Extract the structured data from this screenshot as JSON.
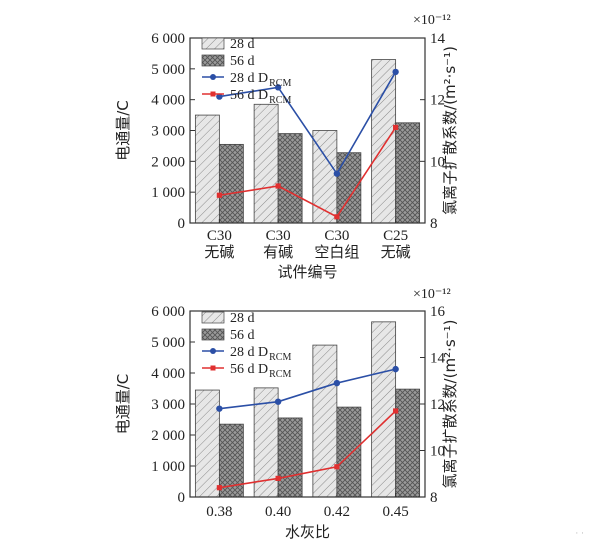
{
  "colors": {
    "line28": "#2b4fa6",
    "line56": "#e03030",
    "axis": "#333333"
  },
  "watermark": "· ·",
  "chart_data": [
    {
      "type": "bar",
      "categories": [
        "C30\n无碱",
        "C30\n有碱",
        "C30\n空白组",
        "C25\n无碱"
      ],
      "xlabel": "试件编号",
      "ylabel": "电通量/C",
      "y2label": "氯离子扩散系数/(m²·s⁻¹)",
      "y2_multiplier": "×10⁻¹²",
      "ylim": [
        0,
        6000
      ],
      "y2lim": [
        8,
        14
      ],
      "yticks": [
        "0",
        "1 000",
        "2 000",
        "3 000",
        "4 000",
        "5 000",
        "6 000"
      ],
      "y2ticks": [
        "8",
        "10",
        "12",
        "14"
      ],
      "series": [
        {
          "name": "28 d",
          "kind": "bar",
          "values": [
            3500,
            3850,
            3000,
            5300
          ]
        },
        {
          "name": "56 d",
          "kind": "bar",
          "values": [
            2550,
            2900,
            2280,
            3250
          ]
        },
        {
          "name": "28 d D",
          "sub": "RCM",
          "kind": "line",
          "axis": "right",
          "values": [
            12.1,
            12.4,
            9.6,
            12.9
          ]
        },
        {
          "name": "56 d D",
          "sub": "RCM",
          "kind": "line",
          "axis": "right",
          "values": [
            8.9,
            9.2,
            8.2,
            11.1
          ]
        }
      ]
    },
    {
      "type": "bar",
      "categories": [
        "0.38",
        "0.40",
        "0.42",
        "0.45"
      ],
      "xlabel": "水灰比",
      "ylabel": "电通量/C",
      "y2label": "氯离子扩散系数/(m²·s⁻¹)",
      "y2_multiplier": "×10⁻¹²",
      "ylim": [
        0,
        6000
      ],
      "y2lim": [
        8,
        16
      ],
      "yticks": [
        "0",
        "1 000",
        "2 000",
        "3 000",
        "4 000",
        "5 000",
        "6 000"
      ],
      "y2ticks": [
        "8",
        "10",
        "12",
        "14",
        "16"
      ],
      "series": [
        {
          "name": "28 d",
          "kind": "bar",
          "values": [
            3450,
            3520,
            4900,
            5650
          ]
        },
        {
          "name": "56 d",
          "kind": "bar",
          "values": [
            2350,
            2550,
            2900,
            3480
          ]
        },
        {
          "name": "28 d D",
          "sub": "RCM",
          "kind": "line",
          "axis": "right",
          "values": [
            11.8,
            12.1,
            12.9,
            13.5
          ]
        },
        {
          "name": "56 d D",
          "sub": "RCM",
          "kind": "line",
          "axis": "right",
          "values": [
            8.4,
            8.8,
            9.3,
            11.7
          ]
        }
      ]
    }
  ]
}
